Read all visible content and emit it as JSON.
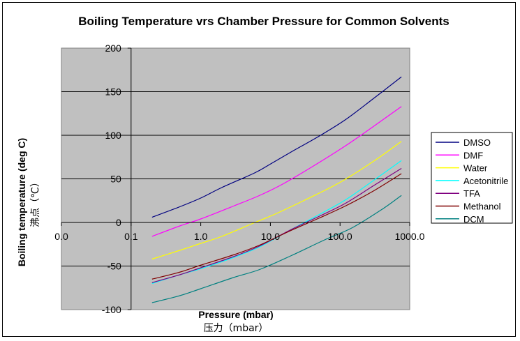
{
  "chart_data": {
    "type": "line",
    "title": "Boiling Temperature vrs Chamber Pressure for Common Solvents",
    "xlabel": "Pressure  (mbar)",
    "xlabel_secondary": "压力（mbar）",
    "ylabel": "Boiling temperature (deg C)",
    "ylabel_secondary": "沸点（℃）",
    "x_scale": "log",
    "xlim": [
      0.01,
      1000
    ],
    "ylim": [
      -100,
      200
    ],
    "x_ticks": [
      0.01,
      0.1,
      1,
      10,
      100,
      1000
    ],
    "x_tick_labels": [
      "0.0",
      "0.1",
      "1.0",
      "10.0",
      "100.0",
      "1000.0"
    ],
    "y_ticks": [
      -100,
      -50,
      0,
      50,
      100,
      150,
      200
    ],
    "y_tick_labels": [
      "-100",
      "-50",
      "0",
      "50",
      "100",
      "150",
      "200"
    ],
    "grid": "horizontal",
    "plot_background": "#c0c0c0",
    "legend_position": "right",
    "series": [
      {
        "name": "DMSO",
        "color": "#000080",
        "x": [
          0.2,
          0.5,
          1,
          2,
          6,
          10,
          20,
          50,
          120,
          300,
          760
        ],
        "y": [
          6,
          18,
          28,
          40,
          57,
          67,
          81,
          99,
          118,
          142,
          167
        ]
      },
      {
        "name": "DMF",
        "color": "#ff00ff",
        "x": [
          0.2,
          0.5,
          1,
          3,
          7,
          15,
          40,
          120,
          300,
          760
        ],
        "y": [
          -16,
          -4,
          4,
          19,
          31,
          44,
          64,
          88,
          110,
          133
        ]
      },
      {
        "name": "Water",
        "color": "#ffff00",
        "x": [
          0.2,
          0.5,
          1,
          2,
          6,
          12,
          30,
          100,
          300,
          760
        ],
        "y": [
          -42,
          -32,
          -24,
          -16,
          0,
          10,
          25,
          46,
          70,
          93
        ]
      },
      {
        "name": "Acetonitrile",
        "color": "#00ffff",
        "x": [
          0.2,
          0.5,
          1,
          3,
          7,
          20,
          50,
          120,
          300,
          760
        ],
        "y": [
          -70,
          -60,
          -53,
          -40,
          -28,
          -8,
          9,
          26,
          48,
          71
        ]
      },
      {
        "name": "TFA",
        "color": "#800080",
        "x": [
          0.2,
          0.5,
          1,
          3,
          7,
          20,
          50,
          120,
          300,
          760
        ],
        "y": [
          -69,
          -60,
          -52,
          -39,
          -27,
          -8,
          7,
          22,
          42,
          62
        ]
      },
      {
        "name": "Methanol",
        "color": "#800000",
        "x": [
          0.2,
          0.5,
          1,
          3,
          7,
          20,
          50,
          120,
          300,
          760
        ],
        "y": [
          -65,
          -57,
          -49,
          -37,
          -26,
          -9,
          5,
          19,
          36,
          56
        ]
      },
      {
        "name": "DCM",
        "color": "#008080",
        "x": [
          0.2,
          0.5,
          1,
          3,
          7,
          20,
          60,
          150,
          400,
          760
        ],
        "y": [
          -92,
          -84,
          -76,
          -63,
          -54,
          -38,
          -20,
          -6,
          15,
          31
        ]
      }
    ]
  }
}
